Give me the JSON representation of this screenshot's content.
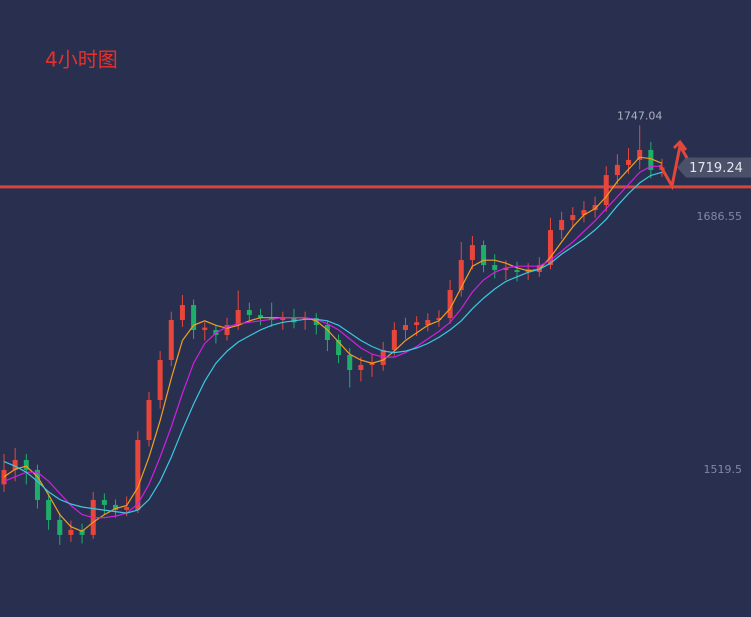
{
  "chart_data": {
    "type": "candlestick",
    "title": "4小时图",
    "open": [
      1510.0,
      1519.5,
      1526.1,
      1519.5,
      1499.7,
      1486.5,
      1476.6,
      1479.9,
      1476.6,
      1499.7,
      1496.4,
      1493.1,
      1493.1,
      1539.3,
      1565.7,
      1592.1,
      1618.5,
      1628.4,
      1611.9,
      1611.9,
      1608.6,
      1615.2,
      1625.1,
      1621.8,
      1619.8,
      1618.5,
      1619.8,
      1619.8,
      1619.8,
      1615.2,
      1605.3,
      1595.4,
      1585.5,
      1588.8,
      1588.8,
      1598.7,
      1611.9,
      1615.2,
      1615.2,
      1618.5,
      1619.8,
      1638.3,
      1658.1,
      1668.0,
      1654.8,
      1651.5,
      1651.5,
      1650.2,
      1650.2,
      1654.8,
      1677.9,
      1684.5,
      1687.8,
      1691.1,
      1694.4,
      1714.2,
      1720.9,
      1724.2,
      1730.8,
      1717.6
    ],
    "high": [
      1530,
      1534,
      1530,
      1523,
      1504,
      1491,
      1486,
      1484,
      1505,
      1504,
      1500,
      1502,
      1545,
      1571,
      1598,
      1624,
      1635,
      1632,
      1617,
      1615,
      1620,
      1638,
      1630,
      1626,
      1630,
      1624,
      1626,
      1624,
      1623,
      1618,
      1609,
      1600,
      1594,
      1596,
      1604,
      1617,
      1620,
      1621,
      1623,
      1625,
      1645,
      1670,
      1674,
      1671,
      1662,
      1658,
      1657,
      1656,
      1660,
      1686,
      1690,
      1693,
      1697,
      1700,
      1720,
      1728,
      1732,
      1747.04,
      1736,
      1725
    ],
    "low": [
      1505,
      1512,
      1510,
      1494,
      1480,
      1470,
      1472,
      1471,
      1474,
      1490,
      1488,
      1489,
      1491,
      1535,
      1560,
      1588,
      1614,
      1606,
      1605,
      1603,
      1605,
      1612,
      1617,
      1615,
      1614,
      1612,
      1613,
      1612,
      1609,
      1598,
      1590,
      1574,
      1578,
      1581,
      1585,
      1595,
      1606,
      1608,
      1611,
      1614,
      1616,
      1634,
      1652,
      1650,
      1646,
      1645,
      1644,
      1645,
      1647,
      1652,
      1672,
      1680,
      1683,
      1686,
      1690,
      1708,
      1715,
      1718,
      1712,
      1713
    ],
    "close": [
      1519.5,
      1526.1,
      1519.5,
      1499.7,
      1486.5,
      1476.6,
      1479.9,
      1476.6,
      1499.7,
      1496.4,
      1493.1,
      1495.0,
      1539.3,
      1565.7,
      1592.1,
      1618.5,
      1628.4,
      1611.9,
      1613.5,
      1608.6,
      1615.2,
      1625.1,
      1621.8,
      1619.8,
      1618.5,
      1619.8,
      1617.0,
      1619.8,
      1615.2,
      1605.3,
      1595.4,
      1585.5,
      1588.8,
      1590.5,
      1598.7,
      1611.9,
      1615.2,
      1617.0,
      1618.5,
      1619.8,
      1638.3,
      1658.1,
      1668.0,
      1654.8,
      1651.5,
      1653.0,
      1650.2,
      1652.0,
      1654.8,
      1677.9,
      1684.5,
      1687.8,
      1691.1,
      1694.4,
      1714.2,
      1720.9,
      1724.2,
      1730.8,
      1717.6,
      1719.24
    ],
    "series": [
      {
        "color": "#f0a020",
        "values": [
          1515,
          1520,
          1522,
          1515,
          1503,
          1490,
          1482,
          1479,
          1485,
          1490,
          1494,
          1496,
          1508,
          1528,
          1552,
          1580,
          1605,
          1615,
          1618,
          1615,
          1613,
          1615,
          1618,
          1620,
          1620,
          1620,
          1620,
          1620,
          1618,
          1612,
          1604,
          1596,
          1592,
          1590,
          1592,
          1598,
          1605,
          1610,
          1615,
          1618,
          1626,
          1640,
          1654,
          1658,
          1658,
          1656,
          1653,
          1651,
          1652,
          1660,
          1670,
          1680,
          1688,
          1692,
          1700,
          1710,
          1718,
          1726,
          1725,
          1722
        ]
      },
      {
        "color": "#d21ee0",
        "values": [
          1512,
          1515,
          1518,
          1518,
          1512,
          1504,
          1496,
          1490,
          1488,
          1488,
          1489,
          1491,
          1497,
          1510,
          1528,
          1548,
          1570,
          1590,
          1603,
          1610,
          1614,
          1616,
          1617,
          1618,
          1619,
          1620,
          1620,
          1620,
          1619,
          1616,
          1612,
          1606,
          1600,
          1596,
          1594,
          1594,
          1597,
          1601,
          1606,
          1611,
          1617,
          1626,
          1637,
          1645,
          1650,
          1653,
          1654,
          1654,
          1654,
          1658,
          1664,
          1670,
          1677,
          1684,
          1692,
          1700,
          1708,
          1716,
          1720,
          1720
        ]
      },
      {
        "color": "#3cc8e0",
        "values": [
          1525,
          1522,
          1518,
          1512,
          1505,
          1500,
          1497,
          1495,
          1494,
          1493,
          1492,
          1491,
          1493,
          1500,
          1512,
          1528,
          1546,
          1563,
          1578,
          1590,
          1598,
          1604,
          1608,
          1612,
          1615,
          1617,
          1618,
          1619,
          1619,
          1618,
          1615,
          1610,
          1605,
          1601,
          1598,
          1597,
          1598,
          1600,
          1603,
          1607,
          1612,
          1618,
          1626,
          1633,
          1639,
          1644,
          1647,
          1650,
          1652,
          1656,
          1662,
          1667,
          1672,
          1678,
          1685,
          1694,
          1702,
          1709,
          1714,
          1716
        ]
      }
    ],
    "ylim": [
      1422.4,
      1829.8
    ],
    "yticks": [
      1686.55,
      1519.5
    ],
    "up_color": "#e8463a",
    "down_color": "#1fae6a",
    "level": 1706.4,
    "level_color": "#d9453a"
  }
}
